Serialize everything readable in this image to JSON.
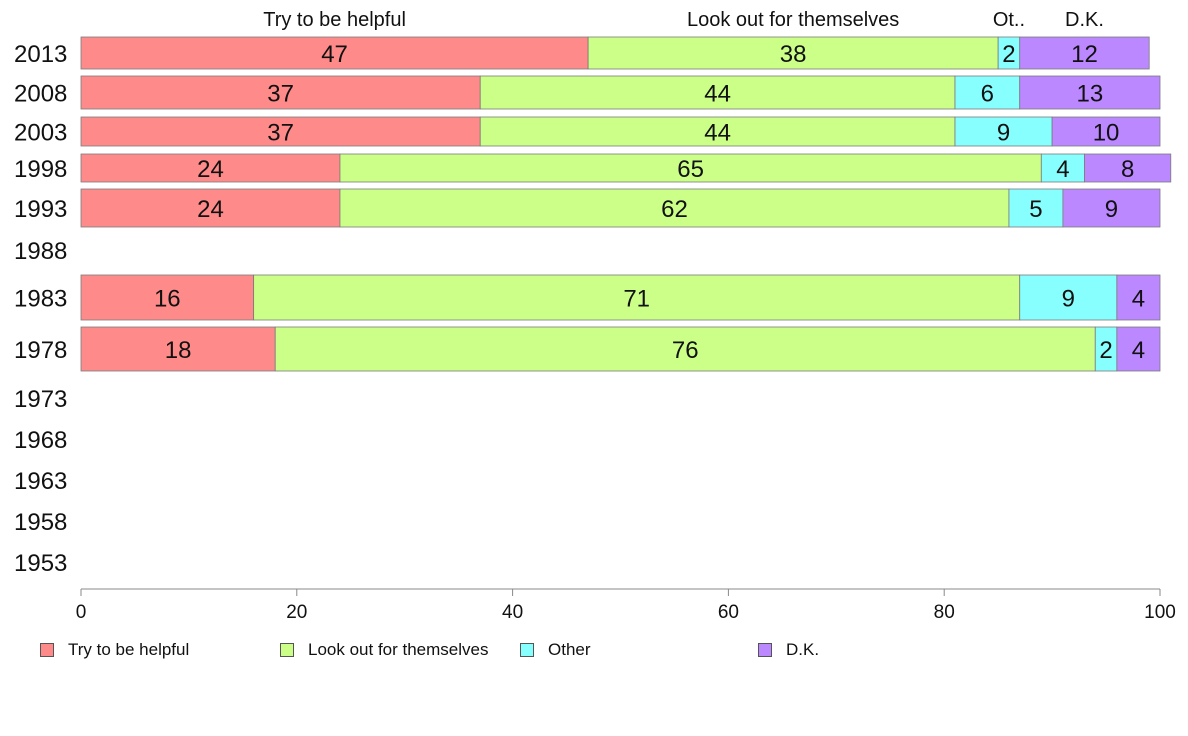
{
  "chart_data": {
    "type": "bar",
    "orientation": "horizontal",
    "stacked": true,
    "categories": [
      "2013",
      "2008",
      "2003",
      "1998",
      "1993",
      "1988",
      "1983",
      "1978",
      "1973",
      "1968",
      "1963",
      "1958",
      "1953"
    ],
    "series": [
      {
        "name": "Try to be helpful",
        "color": "#ff8a8a",
        "values": [
          47,
          37,
          37,
          24,
          24,
          null,
          16,
          18,
          null,
          null,
          null,
          null,
          null
        ]
      },
      {
        "name": "Look out for themselves",
        "color": "#ccff88",
        "values": [
          38,
          44,
          44,
          65,
          62,
          null,
          71,
          76,
          null,
          null,
          null,
          null,
          null
        ]
      },
      {
        "name": "Other",
        "color": "#88ffff",
        "values": [
          2,
          6,
          9,
          4,
          5,
          null,
          9,
          2,
          null,
          null,
          null,
          null,
          null
        ]
      },
      {
        "name": "D.K.",
        "color": "#bb88ff",
        "values": [
          12,
          13,
          10,
          8,
          9,
          null,
          4,
          4,
          null,
          null,
          null,
          null,
          null
        ]
      }
    ],
    "column_headers": [
      "Try to be helpful",
      "Look out for themselves",
      "Ot..",
      "D.K."
    ],
    "xlim": [
      0,
      100
    ],
    "xticks": [
      "0",
      "20",
      "40",
      "60",
      "80",
      "100"
    ],
    "legend_position": "bottom",
    "grid": false
  }
}
